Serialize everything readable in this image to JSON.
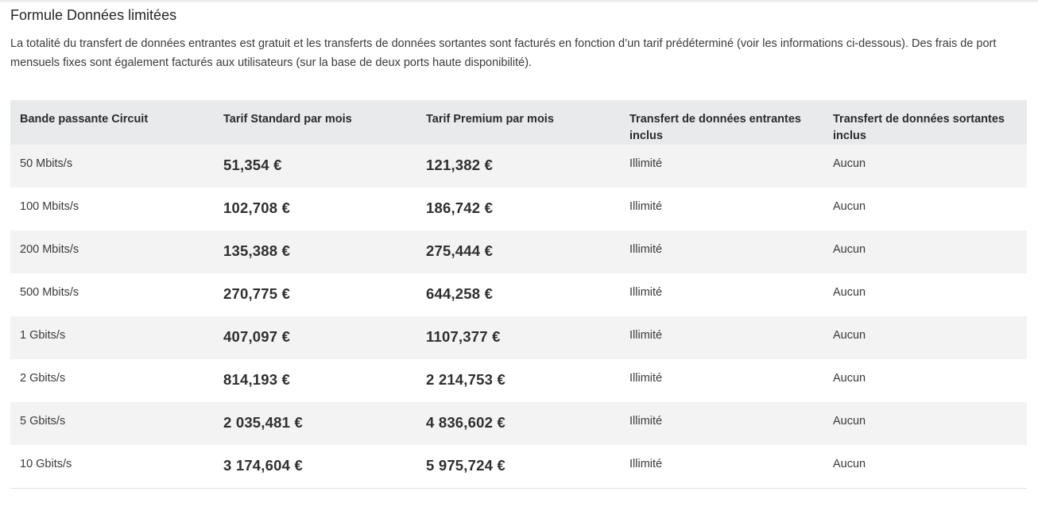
{
  "section": {
    "title": "Formule Données limitées",
    "description": "La totalité du transfert de données entrantes est gratuit et les transferts de données sortantes sont facturés en fonction d’un tarif prédéterminé (voir les informations ci-dessous). Des frais de port mensuels fixes sont également facturés aux utilisateurs (sur la base de deux ports haute disponibilité)."
  },
  "table": {
    "headers": [
      "Bande passante Circuit",
      "Tarif Standard par mois",
      "Tarif Premium par mois",
      "Transfert de données entrantes inclus",
      "Transfert de données sortantes inclus"
    ],
    "rows": [
      {
        "bandwidth": "50 Mbits/s",
        "standard": "51,354 €",
        "premium": "121,382 €",
        "ingress": "Illimité",
        "egress": "Aucun"
      },
      {
        "bandwidth": "100 Mbits/s",
        "standard": "102,708 €",
        "premium": "186,742 €",
        "ingress": "Illimité",
        "egress": "Aucun"
      },
      {
        "bandwidth": "200 Mbits/s",
        "standard": "135,388 €",
        "premium": "275,444 €",
        "ingress": "Illimité",
        "egress": "Aucun"
      },
      {
        "bandwidth": "500 Mbits/s",
        "standard": "270,775 €",
        "premium": "644,258 €",
        "ingress": "Illimité",
        "egress": "Aucun"
      },
      {
        "bandwidth": "1 Gbits/s",
        "standard": "407,097 €",
        "premium": "1107,377 €",
        "ingress": "Illimité",
        "egress": "Aucun"
      },
      {
        "bandwidth": "2 Gbits/s",
        "standard": "814,193 €",
        "premium": "2 214,753 €",
        "ingress": "Illimité",
        "egress": "Aucun"
      },
      {
        "bandwidth": "5 Gbits/s",
        "standard": "2 035,481 €",
        "premium": "4 836,602 €",
        "ingress": "Illimité",
        "egress": "Aucun"
      },
      {
        "bandwidth": "10 Gbits/s",
        "standard": "3 174,604 €",
        "premium": "5 975,724 €",
        "ingress": "Illimité",
        "egress": "Aucun"
      }
    ]
  },
  "colors": {
    "header_bg": "#e9eaec",
    "stripe_bg": "#f3f3f4",
    "text": "#2a2a2a"
  }
}
